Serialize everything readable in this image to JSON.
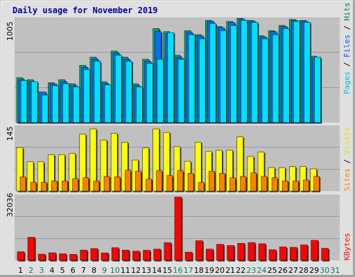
{
  "chart_data": [
    {
      "type": "bar",
      "title": "Daily usage for November 2019",
      "panel": "hits-files-pages",
      "ylabel_max": "1005",
      "right_labels": [
        "Pages",
        "Files",
        "Hits"
      ],
      "colors": {
        "Hits": "#008040",
        "Files": "#0080ff",
        "Pages": "#00e0ff"
      },
      "categories": [
        "1",
        "2",
        "3",
        "4",
        "5",
        "6",
        "7",
        "8",
        "9",
        "10",
        "11",
        "12",
        "13",
        "14",
        "15",
        "16",
        "17",
        "18",
        "19",
        "20",
        "21",
        "22",
        "23",
        "24",
        "25",
        "26",
        "27",
        "28",
        "29",
        "30",
        "31"
      ],
      "series": [
        {
          "name": "Hits",
          "values": [
            440,
            420,
            300,
            390,
            420,
            380,
            560,
            640,
            400,
            700,
            640,
            380,
            620,
            920,
            890,
            660,
            900,
            860,
            1000,
            940,
            990,
            1020,
            1000,
            850,
            900,
            950,
            1010,
            1000,
            650,
            null,
            null
          ]
        },
        {
          "name": "Files",
          "values": [
            420,
            400,
            300,
            380,
            400,
            360,
            540,
            620,
            380,
            680,
            620,
            360,
            600,
            890,
            870,
            640,
            880,
            850,
            990,
            930,
            980,
            1010,
            990,
            840,
            890,
            940,
            1000,
            990,
            630,
            null,
            null
          ]
        },
        {
          "name": "Pages",
          "values": [
            410,
            400,
            270,
            360,
            380,
            350,
            520,
            600,
            370,
            660,
            600,
            350,
            580,
            620,
            880,
            620,
            860,
            820,
            970,
            900,
            950,
            1000,
            980,
            820,
            860,
            920,
            990,
            980,
            640,
            null,
            null
          ]
        }
      ]
    },
    {
      "type": "bar",
      "panel": "sites-visits",
      "ylabel_max": "145",
      "right_labels": [
        "Sites",
        "/",
        "Visits"
      ],
      "colors": {
        "Visits": "#ffff00",
        "Sites": "#ff8000"
      },
      "series": [
        {
          "name": "Visits",
          "values": [
            98,
            66,
            66,
            82,
            82,
            85,
            128,
            140,
            115,
            130,
            110,
            70,
            97,
            140,
            132,
            100,
            67,
            110,
            89,
            92,
            92,
            122,
            78,
            88,
            53,
            53,
            55,
            55,
            50,
            null,
            null
          ]
        },
        {
          "name": "Sites",
          "values": [
            32,
            20,
            20,
            23,
            23,
            28,
            30,
            23,
            33,
            32,
            47,
            45,
            27,
            46,
            35,
            46,
            40,
            20,
            45,
            40,
            30,
            33,
            41,
            33,
            30,
            23,
            23,
            25,
            33,
            null,
            null
          ]
        }
      ]
    },
    {
      "type": "bar",
      "panel": "kbytes",
      "ylabel_max": "32036",
      "right_labels": [
        "KBytes"
      ],
      "colors": {
        "KBytes": "#ff0000"
      },
      "series": [
        {
          "name": "KBytes",
          "values": [
            4300,
            11500,
            3100,
            3800,
            3300,
            3000,
            5100,
            5900,
            3700,
            6300,
            5100,
            4600,
            5000,
            5600,
            8800,
            31500,
            4100,
            9800,
            5600,
            8000,
            7400,
            8500,
            8900,
            8300,
            5300,
            6700,
            6500,
            7700,
            10000,
            6000,
            null
          ]
        }
      ]
    }
  ],
  "weekend_days": [
    "2",
    "3",
    "9",
    "10",
    "16",
    "17",
    "23",
    "24",
    "30",
    "31"
  ],
  "colors": {
    "weekday_label": "#000000",
    "weekend_label": "#00805c",
    "title": "#0000a0",
    "plot_bg": "#c0c0c0",
    "sep": "#8080a0"
  }
}
